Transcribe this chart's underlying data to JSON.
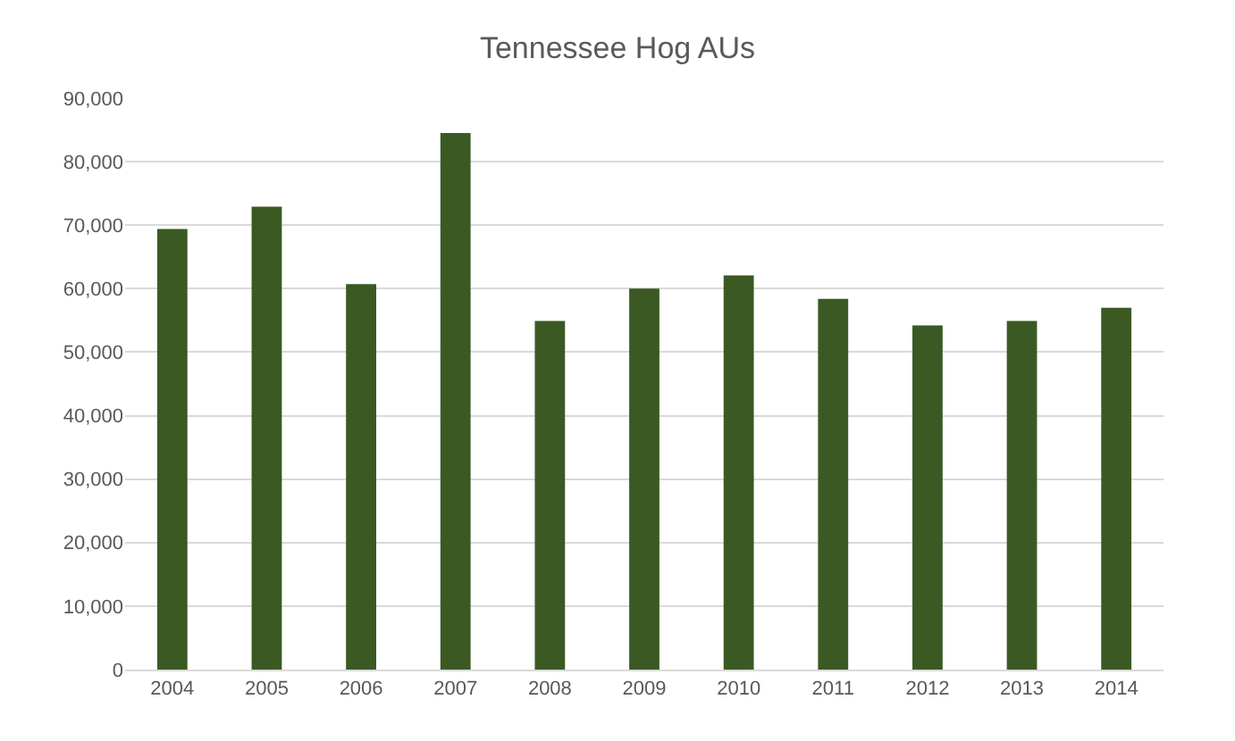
{
  "chart_data": {
    "type": "bar",
    "title": "Tennessee Hog AUs",
    "categories": [
      "2004",
      "2005",
      "2006",
      "2007",
      "2008",
      "2009",
      "2010",
      "2011",
      "2012",
      "2013",
      "2014"
    ],
    "values": [
      69400,
      72900,
      60700,
      84500,
      54900,
      60000,
      62100,
      58400,
      54200,
      54900,
      57000
    ],
    "color": "#3b5a23",
    "ylim": [
      0,
      90000
    ],
    "yticks": [
      {
        "value": 0,
        "label": "0"
      },
      {
        "value": 10000,
        "label": "10,000"
      },
      {
        "value": 20000,
        "label": "20,000"
      },
      {
        "value": 30000,
        "label": "30,000"
      },
      {
        "value": 40000,
        "label": "40,000"
      },
      {
        "value": 50000,
        "label": "50,000"
      },
      {
        "value": 60000,
        "label": "60,000"
      },
      {
        "value": 70000,
        "label": "70,000"
      },
      {
        "value": 80000,
        "label": "80,000"
      },
      {
        "value": 90000,
        "label": "90,000"
      }
    ],
    "grid": "y",
    "legend": false
  }
}
